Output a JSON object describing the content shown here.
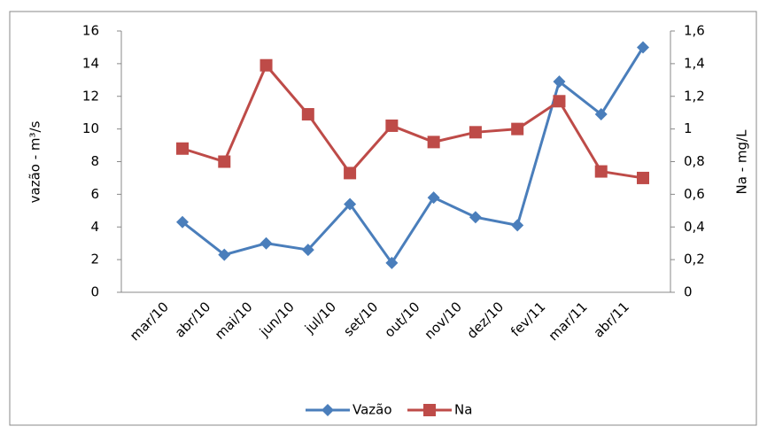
{
  "chart_data": {
    "type": "line",
    "categories": [
      "mar/10",
      "abr/10",
      "mai/10",
      "jun/10",
      "jul/10",
      "set/10",
      "out/10",
      "nov/10",
      "dez/10",
      "fev/11",
      "mar/11",
      "abr/11"
    ],
    "series": [
      {
        "name": "Vazão",
        "color": "#4a7ebb",
        "marker": "diamond",
        "values": [
          4.3,
          2.3,
          3.0,
          2.6,
          5.4,
          1.8,
          5.8,
          4.6,
          4.1,
          12.9,
          10.9,
          15.0
        ]
      },
      {
        "name": "Na",
        "color": "#be4b48",
        "marker": "square",
        "axis": "y2",
        "values": [
          0.88,
          0.8,
          1.39,
          1.09,
          0.73,
          1.02,
          0.92,
          0.98,
          1.0,
          1.17,
          0.74,
          0.7
        ]
      }
    ],
    "y_label": "vazão - m³/s",
    "y2_label": "Na - mg/L",
    "ylim": [
      0,
      16
    ],
    "yticks": [
      0,
      2,
      4,
      6,
      8,
      10,
      12,
      14,
      16
    ],
    "y2lim": [
      0,
      1.6
    ],
    "y2ticks": [
      0,
      {
        "value": 0.2,
        "label": "0,2"
      },
      {
        "value": 0.4,
        "label": "0,4"
      },
      {
        "value": 0.6,
        "label": "0,6"
      },
      {
        "value": 0.8,
        "label": "0,8"
      },
      1,
      {
        "value": 1.2,
        "label": "1,2"
      },
      {
        "value": 1.4,
        "label": "1,4"
      },
      {
        "value": 1.6,
        "label": "1,6"
      }
    ],
    "legend": "bottom"
  }
}
